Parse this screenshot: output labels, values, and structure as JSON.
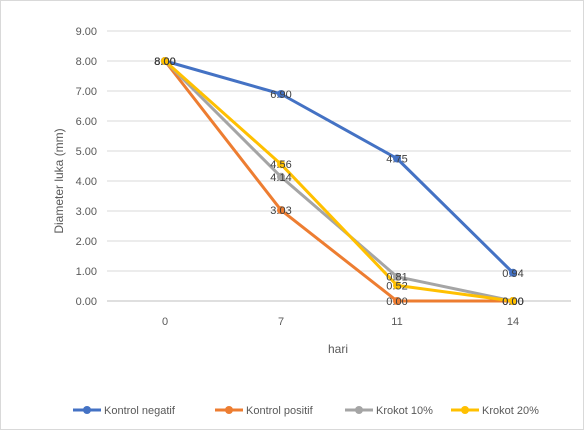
{
  "chart_data": {
    "type": "line",
    "title": "",
    "xlabel": "hari",
    "ylabel": "Diameter luka (mm)",
    "categories": [
      "0",
      "7",
      "11",
      "14"
    ],
    "ylim": [
      0,
      9
    ],
    "yticks": [
      "0.00",
      "1.00",
      "2.00",
      "3.00",
      "4.00",
      "5.00",
      "6.00",
      "7.00",
      "8.00",
      "9.00"
    ],
    "grid": true,
    "legend": "bottom",
    "series": [
      {
        "name": "Kontrol negatif",
        "color": "#4472C4",
        "values": [
          8.0,
          6.9,
          4.75,
          0.94
        ],
        "labels": [
          "8.00",
          "6.90",
          "4.75",
          "0.94"
        ]
      },
      {
        "name": "Kontrol positif",
        "color": "#ED7D31",
        "values": [
          8.0,
          3.03,
          0.0,
          0.0
        ],
        "labels": [
          "8.00",
          "3.03",
          "0.00",
          "0.00"
        ]
      },
      {
        "name": "Krokot 10%",
        "color": "#A5A5A5",
        "values": [
          8.0,
          4.14,
          0.81,
          0.0
        ],
        "labels": [
          "8.00",
          "4.14",
          "0.81",
          "0.00"
        ]
      },
      {
        "name": "Krokot 20%",
        "color": "#FFC000",
        "values": [
          8.0,
          4.56,
          0.52,
          0.0
        ],
        "labels": [
          "8.00",
          "4.56",
          "0.52",
          "0.00"
        ]
      }
    ]
  }
}
